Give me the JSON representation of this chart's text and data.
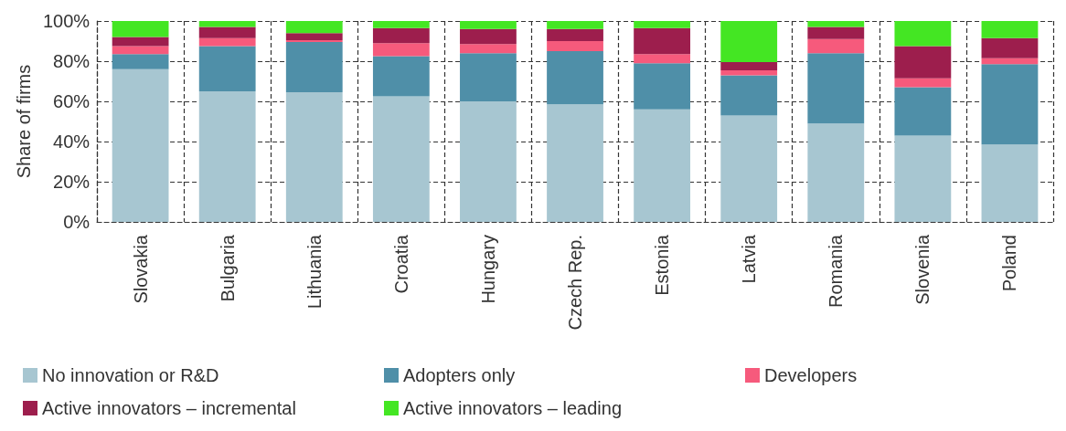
{
  "chart_data": {
    "type": "bar",
    "stacked": true,
    "ylabel": "Share of firms",
    "categories": [
      "Slovakia",
      "Bulgaria",
      "Lithuania",
      "Croatia",
      "Hungary",
      "Czech Rep.",
      "Estonia",
      "Latvia",
      "Romania",
      "Slovenia",
      "Poland"
    ],
    "series": [
      {
        "name": "No innovation or R&D",
        "color": "#a7c6d1",
        "values": [
          76,
          65,
          64.5,
          62.5,
          60,
          58.5,
          56,
          53,
          49,
          43,
          38.5
        ]
      },
      {
        "name": "Adopters only",
        "color": "#4f8fa8",
        "values": [
          7.5,
          22.5,
          25,
          20,
          24,
          26.5,
          23,
          20,
          35,
          24,
          40
        ]
      },
      {
        "name": "Developers",
        "color": "#f65a7c",
        "values": [
          4,
          4,
          1,
          6.5,
          4.5,
          5,
          4.5,
          2.5,
          7,
          4.5,
          3
        ]
      },
      {
        "name": "Active innovators – incremental",
        "color": "#9d1e4d",
        "values": [
          4.5,
          5.5,
          3.5,
          7.5,
          7.5,
          6,
          13,
          4,
          6,
          16,
          10
        ]
      },
      {
        "name": "Active innovators – leading",
        "color": "#44e623",
        "values": [
          8,
          3,
          6,
          3.5,
          4,
          4,
          3.5,
          20.5,
          3,
          12.5,
          8.5
        ]
      }
    ],
    "ylim": [
      0,
      100
    ],
    "yticks": [
      {
        "value": 0,
        "label": "0%"
      },
      {
        "value": 20,
        "label": "20%"
      },
      {
        "value": 40,
        "label": "40%"
      },
      {
        "value": 60,
        "label": "60%"
      },
      {
        "value": 80,
        "label": "80%"
      },
      {
        "value": 100,
        "label": "100%"
      }
    ],
    "grid": true,
    "legend": "bottom"
  }
}
